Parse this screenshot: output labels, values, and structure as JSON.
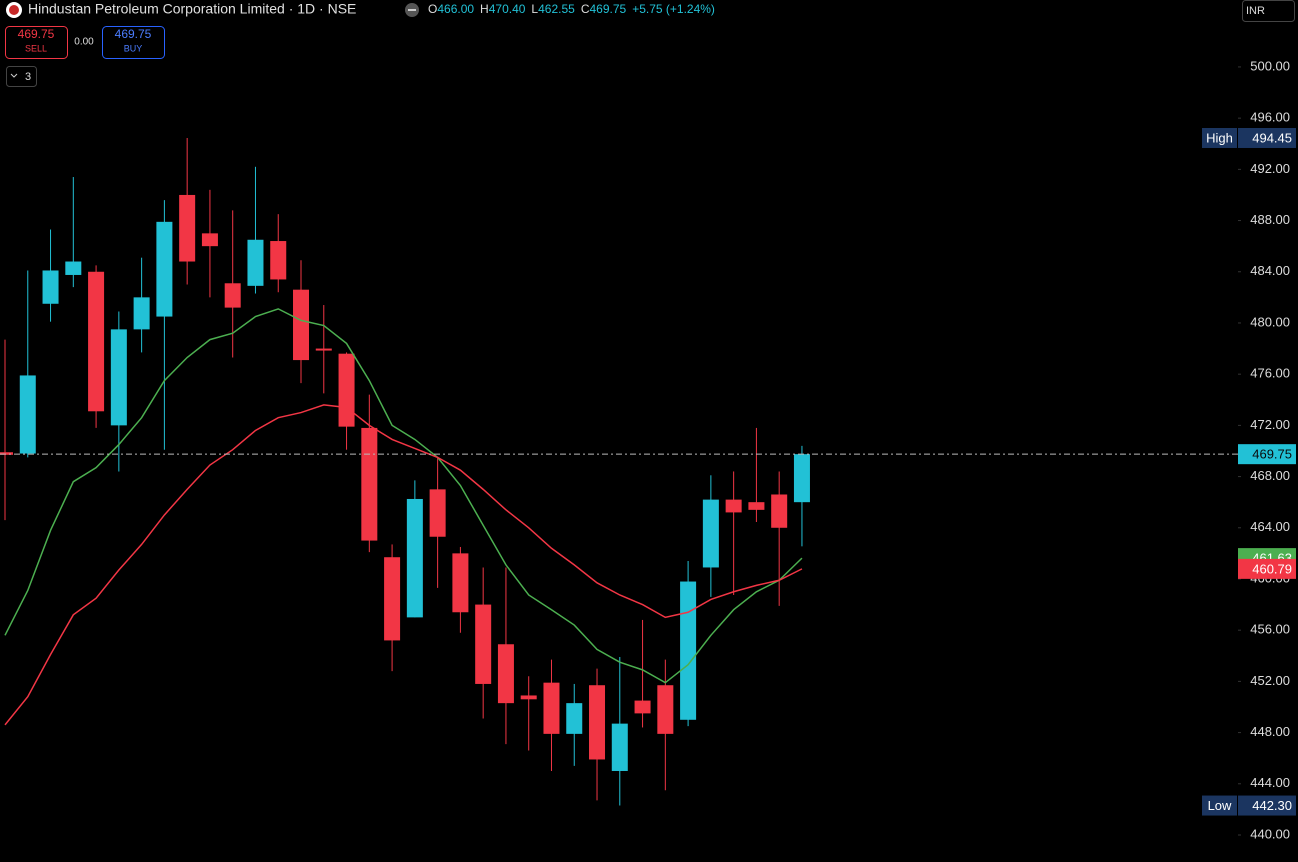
{
  "toolbar": {
    "title": "Hindustan Petroleum Corporation Limited · 1D · NSE",
    "ohlc": [
      {
        "key": "O",
        "value": "466.00"
      },
      {
        "key": "H",
        "value": "470.40"
      },
      {
        "key": "L",
        "value": "462.55"
      },
      {
        "key": "C",
        "value": "469.75"
      }
    ],
    "change": "+5.75 (+1.24%)",
    "sell": {
      "price": "469.75",
      "label": "SELL"
    },
    "spread": "0.00",
    "buy": {
      "price": "469.75",
      "label": "BUY"
    },
    "indicators": "3",
    "currency": "INR"
  },
  "chart_data": {
    "type": "candlestick",
    "open": [
      469.9,
      469.8,
      481.5,
      483.75,
      484.0,
      472.0,
      479.5,
      480.5,
      490.0,
      487.0,
      483.1,
      482.9,
      486.4,
      482.6,
      478.0,
      477.6,
      471.8,
      461.7,
      457.0,
      467.0,
      462.0,
      458.0,
      454.9,
      450.9,
      451.9,
      447.9,
      451.7,
      445.0,
      450.5,
      451.7,
      449.0,
      460.9,
      466.2,
      466.0,
      466.6,
      466.0
    ],
    "high": [
      478.7,
      484.1,
      487.3,
      491.4,
      484.5,
      480.9,
      485.1,
      489.6,
      494.45,
      490.4,
      488.8,
      492.2,
      488.5,
      484.9,
      481.4,
      477.7,
      474.4,
      462.7,
      467.7,
      469.5,
      462.5,
      460.9,
      460.9,
      452.4,
      453.7,
      451.8,
      453.0,
      453.9,
      456.8,
      453.7,
      461.4,
      468.1,
      468.4,
      471.8,
      468.4,
      470.4
    ],
    "low": [
      464.6,
      469.5,
      480.1,
      482.8,
      471.8,
      468.4,
      477.7,
      470.1,
      483.0,
      482.0,
      477.3,
      482.3,
      482.4,
      475.3,
      474.5,
      470.1,
      462.1,
      452.8,
      457.0,
      459.3,
      455.8,
      449.1,
      447.1,
      446.6,
      445.0,
      445.4,
      442.7,
      442.3,
      448.4,
      443.5,
      448.5,
      458.6,
      458.75,
      464.45,
      457.9,
      462.55
    ],
    "close": [
      469.7,
      475.9,
      484.1,
      484.8,
      473.1,
      479.5,
      482.0,
      487.9,
      484.8,
      486.0,
      481.2,
      486.5,
      483.4,
      477.1,
      477.9,
      471.9,
      463.0,
      455.2,
      466.25,
      463.3,
      457.4,
      451.8,
      450.3,
      450.6,
      447.9,
      450.3,
      445.9,
      448.7,
      449.5,
      447.9,
      459.8,
      466.2,
      465.2,
      465.4,
      464.0,
      469.75
    ],
    "up_color": "#22c1d6",
    "down_color": "#f23645",
    "lines": [
      {
        "color": "#4caf50",
        "values": [
          455.6,
          459.1,
          463.8,
          467.6,
          468.7,
          470.5,
          472.6,
          475.5,
          477.3,
          478.7,
          479.2,
          480.5,
          481.1,
          480.2,
          479.8,
          478.4,
          475.5,
          472.0,
          470.9,
          469.5,
          467.3,
          464.2,
          461.1,
          458.75,
          457.6,
          456.4,
          454.5,
          453.5,
          452.9,
          451.9,
          453.3,
          455.6,
          457.6,
          459.0,
          459.9,
          461.63
        ]
      },
      {
        "color": "#f23645",
        "values": [
          448.6,
          450.8,
          454.1,
          457.2,
          458.5,
          460.7,
          462.7,
          465.0,
          467.0,
          468.9,
          470.1,
          471.6,
          472.6,
          473.0,
          473.6,
          473.4,
          472.0,
          470.9,
          470.2,
          469.5,
          468.5,
          467.0,
          465.4,
          464.0,
          462.4,
          461.1,
          459.7,
          458.75,
          458.0,
          457.0,
          457.4,
          458.4,
          459.0,
          459.5,
          459.9,
          460.79
        ]
      }
    ],
    "high_tag": {
      "name": "High",
      "value": 494.45,
      "label": "494.45"
    },
    "low_tag": {
      "name": "Low",
      "value": 442.3,
      "label": "442.30"
    },
    "ylim": [
      437.89,
      505.23
    ],
    "yticks": [
      {
        "value": 440,
        "label": "440.00"
      },
      {
        "value": 444,
        "label": "444.00"
      },
      {
        "value": 448,
        "label": "448.00"
      },
      {
        "value": 452,
        "label": "452.00"
      },
      {
        "value": 456,
        "label": "456.00"
      },
      {
        "value": 460,
        "label": "460.00"
      },
      {
        "value": 464,
        "label": "464.00"
      },
      {
        "value": 468,
        "label": "468.00"
      },
      {
        "value": 472,
        "label": "472.00"
      },
      {
        "value": 476,
        "label": "476.00"
      },
      {
        "value": 480,
        "label": "480.00"
      },
      {
        "value": 484,
        "label": "484.00"
      },
      {
        "value": 488,
        "label": "488.00"
      },
      {
        "value": 492,
        "label": "492.00"
      },
      {
        "value": 496,
        "label": "496.00"
      },
      {
        "value": 500,
        "label": "500.00"
      }
    ]
  }
}
